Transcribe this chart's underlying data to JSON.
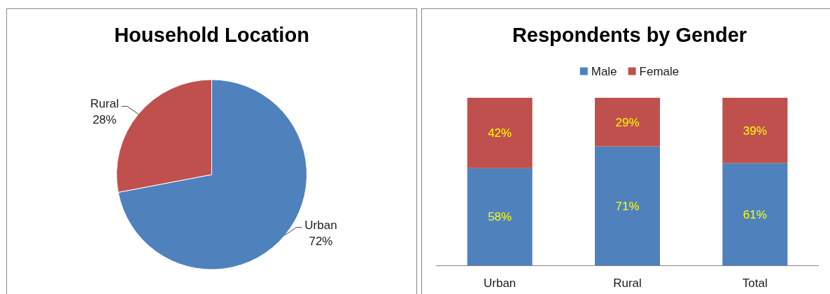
{
  "chart_data": [
    {
      "type": "pie",
      "title": "Household Location",
      "categories": [
        "Urban",
        "Rural"
      ],
      "values": [
        72,
        28
      ],
      "colors": [
        "#4f81bd",
        "#c0504d"
      ],
      "value_labels": [
        "72%",
        "28%"
      ]
    },
    {
      "type": "bar",
      "title": "Respondents by Gender",
      "categories": [
        "Urban",
        "Rural",
        "Total"
      ],
      "stacked": true,
      "legend": "top",
      "tick_labels": "x",
      "series": [
        {
          "name": "Male",
          "color": "#4f81bd",
          "values": [
            58,
            71,
            61
          ],
          "value_labels": [
            "58%",
            "71%",
            "61%"
          ]
        },
        {
          "name": "Female",
          "color": "#c0504d",
          "values": [
            42,
            29,
            39
          ],
          "value_labels": [
            "42%",
            "29%",
            "39%"
          ]
        }
      ]
    }
  ]
}
